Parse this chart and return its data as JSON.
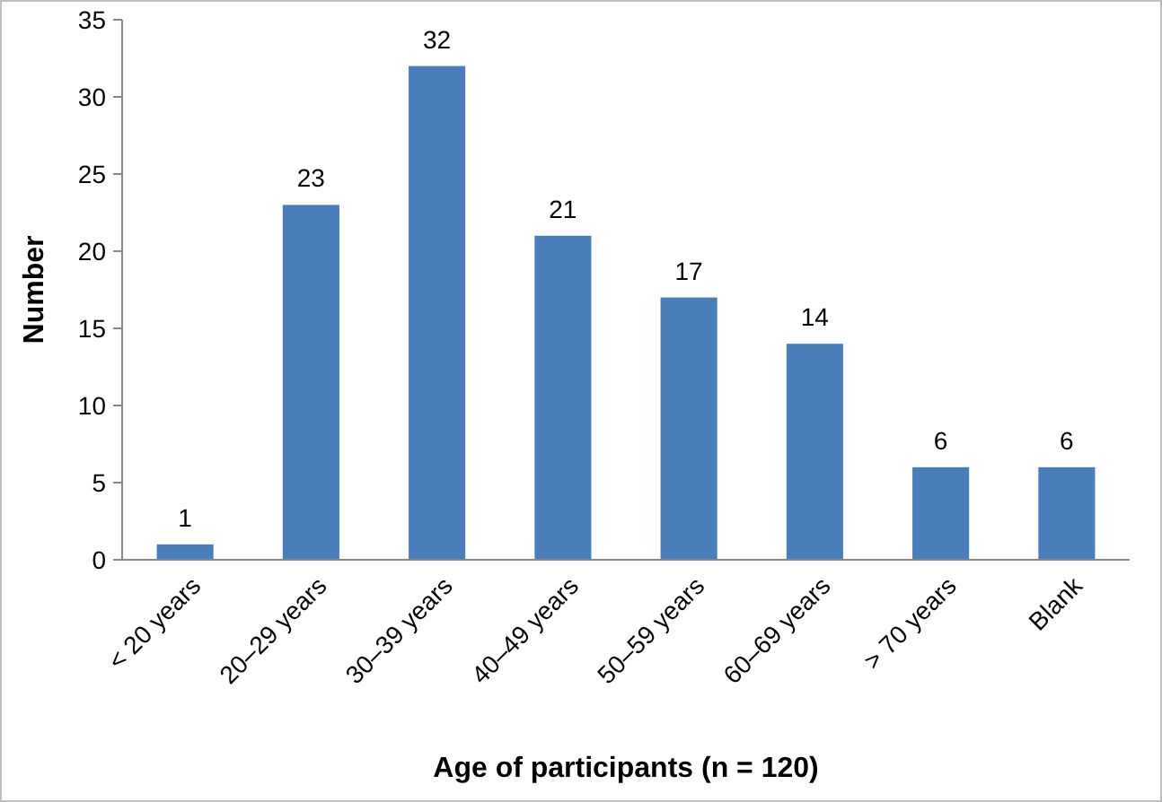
{
  "chart_data": {
    "type": "bar",
    "xlabel": "Age of participants (n = 120)",
    "ylabel": "Number",
    "categories": [
      "< 20 years",
      "20–29 years",
      "30–39 years",
      "40–49 years",
      "50–59 years",
      "60–69 years",
      "> 70 years",
      "Blank"
    ],
    "values": [
      1,
      23,
      32,
      21,
      17,
      14,
      6,
      6
    ],
    "color": "#4a7ebb",
    "ylim": [
      0,
      35
    ],
    "yticks": [
      0,
      5,
      10,
      15,
      20,
      25,
      30,
      35
    ],
    "grid": false,
    "data_labels": true
  }
}
